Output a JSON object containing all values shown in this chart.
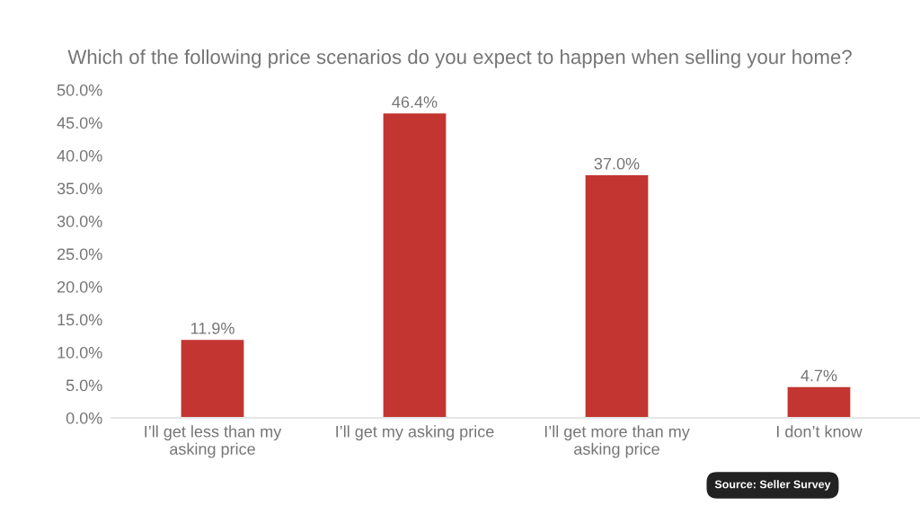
{
  "chart_data": {
    "type": "bar",
    "title": "Which of the following price scenarios do you expect to happen when selling your home?",
    "categories": [
      "I’ll get less than my asking price",
      "I’ll get my asking price",
      "I’ll get more than my asking price",
      "I don’t know"
    ],
    "values": [
      11.9,
      46.4,
      37.0,
      4.7
    ],
    "value_labels": [
      "11.9%",
      "46.4%",
      "37.0%",
      "4.7%"
    ],
    "color": "#c33531",
    "ylim": [
      0,
      50
    ],
    "yticks": [
      {
        "value": 0,
        "label": "0.0%"
      },
      {
        "value": 5,
        "label": "5.0%"
      },
      {
        "value": 10,
        "label": "10.0%"
      },
      {
        "value": 15,
        "label": "15.0%"
      },
      {
        "value": 20,
        "label": "20.0%"
      },
      {
        "value": 25,
        "label": "25.0%"
      },
      {
        "value": 30,
        "label": "30.0%"
      },
      {
        "value": 35,
        "label": "35.0%"
      },
      {
        "value": 40,
        "label": "40.0%"
      },
      {
        "value": 45,
        "label": "45.0%"
      },
      {
        "value": 50,
        "label": "50.0%"
      }
    ],
    "grid": false,
    "annotations": [
      "Source: Seller Survey"
    ]
  }
}
